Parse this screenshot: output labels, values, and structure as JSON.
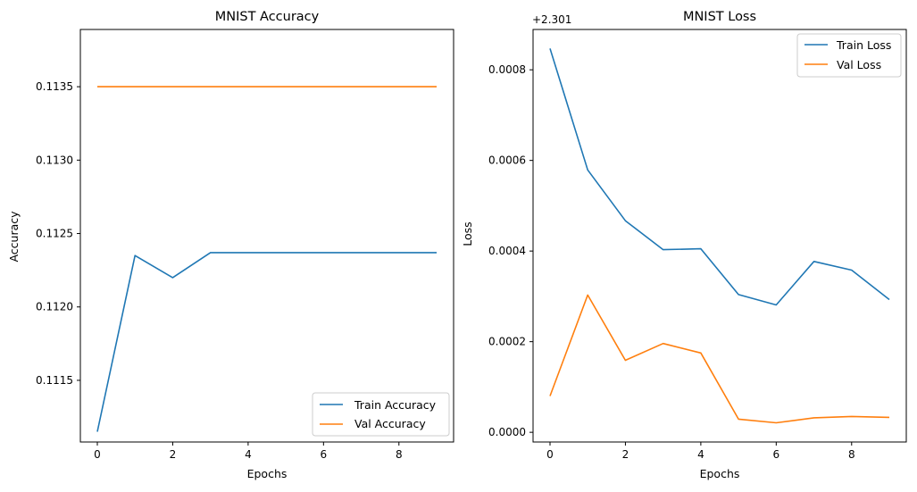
{
  "chart_data": [
    {
      "type": "line",
      "title": "MNIST Accuracy",
      "xlabel": "Epochs",
      "ylabel": "Accuracy",
      "x": [
        0,
        1,
        2,
        3,
        4,
        5,
        6,
        7,
        8,
        9
      ],
      "xlim": [
        -0.45,
        9.45
      ],
      "ylim": [
        0.11108,
        0.11389
      ],
      "xticks": [
        0,
        2,
        4,
        6,
        8
      ],
      "yticks": [
        0.1115,
        0.112,
        0.1125,
        0.113,
        0.1135
      ],
      "xtick_labels": [
        "0",
        "2",
        "4",
        "6",
        "8"
      ],
      "ytick_labels": [
        "0.1115",
        "0.1120",
        "0.1125",
        "0.1130",
        "0.1135"
      ],
      "legend": "lower right",
      "grid": false,
      "series": [
        {
          "name": "Train Accuracy",
          "color": "#1f77b4",
          "values": [
            0.11115,
            0.11235,
            0.1122,
            0.11237,
            0.11237,
            0.11237,
            0.11237,
            0.11237,
            0.11237,
            0.11237
          ]
        },
        {
          "name": "Val Accuracy",
          "color": "#ff7f0e",
          "values": [
            0.1135,
            0.1135,
            0.1135,
            0.1135,
            0.1135,
            0.1135,
            0.1135,
            0.1135,
            0.1135,
            0.1135
          ]
        }
      ]
    },
    {
      "type": "line",
      "title": "MNIST Loss",
      "xlabel": "Epochs",
      "ylabel": "Loss",
      "offset_label": "+2.301",
      "x": [
        0,
        1,
        2,
        3,
        4,
        5,
        6,
        7,
        8,
        9
      ],
      "xlim": [
        -0.45,
        9.45
      ],
      "ylim": [
        -2.14e-05,
        0.000889
      ],
      "xticks": [
        0,
        2,
        4,
        6,
        8
      ],
      "yticks": [
        0.0,
        0.0002,
        0.0004,
        0.0006,
        0.0008
      ],
      "xtick_labels": [
        "0",
        "2",
        "4",
        "6",
        "8"
      ],
      "ytick_labels": [
        "0.0000",
        "0.0002",
        "0.0004",
        "0.0006",
        "0.0008"
      ],
      "legend": "upper right",
      "grid": false,
      "series": [
        {
          "name": "Train Loss",
          "color": "#1f77b4",
          "values": [
            0.000847,
            0.000579,
            0.000467,
            0.000403,
            0.000405,
            0.000304,
            0.000281,
            0.000377,
            0.000358,
            0.000293
          ]
        },
        {
          "name": "Val Loss",
          "color": "#ff7f0e",
          "values": [
            8e-05,
            0.000303,
            0.000159,
            0.000196,
            0.000175,
            2.9e-05,
            2.1e-05,
            3.2e-05,
            3.5e-05,
            3.3e-05
          ]
        }
      ]
    }
  ]
}
